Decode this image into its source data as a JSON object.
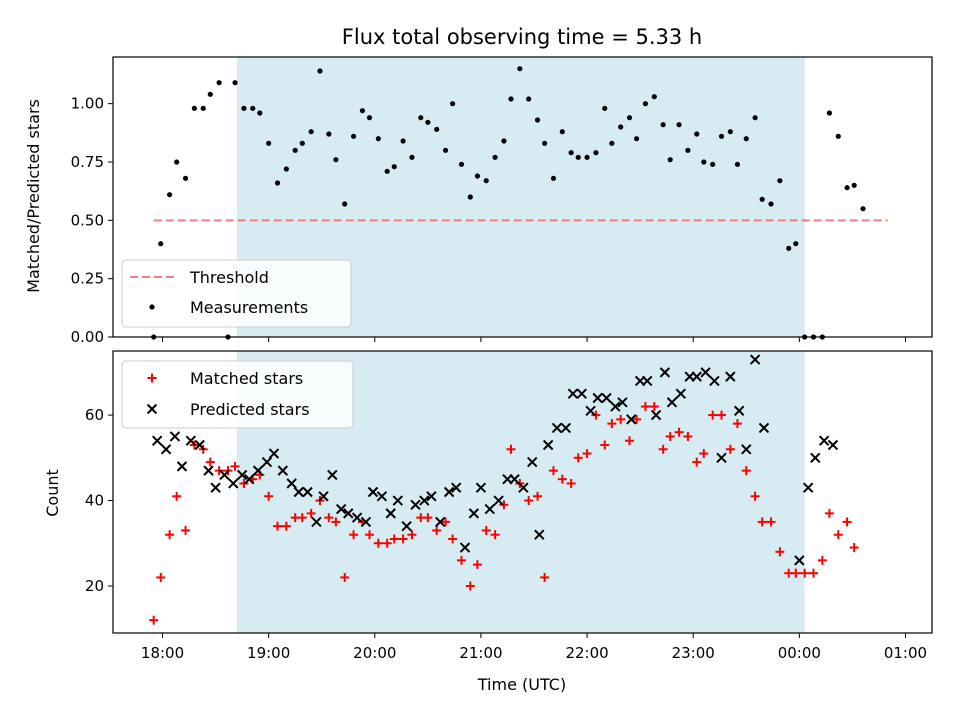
{
  "title": "Flux total observing time = 5.33 h",
  "xlabel": "Time (UTC)",
  "chart_data": [
    {
      "type": "scatter",
      "panel": "top",
      "ylabel": "Matched/Predicted stars",
      "ylim": [
        0,
        1.2
      ],
      "yticks": [
        "0.00",
        "0.25",
        "0.50",
        "0.75",
        "1.00"
      ],
      "xlim": [
        "17:32",
        "01:15"
      ],
      "xticks": [
        "18:00",
        "19:00",
        "20:00",
        "21:00",
        "22:00",
        "23:00",
        "00:00",
        "01:00"
      ],
      "shaded_interval": [
        "18:42",
        "00:03"
      ],
      "threshold": {
        "name": "Threshold",
        "value": 0.5,
        "x": [
          "17:55",
          "00:50"
        ],
        "color": "#f08080"
      },
      "series": [
        {
          "name": "Measurements",
          "color": "#000000",
          "points": [
            [
              "17:55",
              0.0
            ],
            [
              "17:59",
              0.4
            ],
            [
              "18:04",
              0.61
            ],
            [
              "18:08",
              0.75
            ],
            [
              "18:13",
              0.68
            ],
            [
              "18:18",
              0.98
            ],
            [
              "18:23",
              0.98
            ],
            [
              "18:27",
              1.04
            ],
            [
              "18:32",
              1.09
            ],
            [
              "18:37",
              0.0
            ],
            [
              "18:41",
              1.09
            ],
            [
              "18:46",
              0.98
            ],
            [
              "18:51",
              0.98
            ],
            [
              "18:55",
              0.96
            ],
            [
              "19:00",
              0.83
            ],
            [
              "19:05",
              0.66
            ],
            [
              "19:10",
              0.72
            ],
            [
              "19:15",
              0.8
            ],
            [
              "19:19",
              0.83
            ],
            [
              "19:24",
              0.88
            ],
            [
              "19:29",
              1.14
            ],
            [
              "19:34",
              0.87
            ],
            [
              "19:38",
              0.76
            ],
            [
              "19:43",
              0.57
            ],
            [
              "19:48",
              0.86
            ],
            [
              "19:53",
              0.97
            ],
            [
              "19:57",
              0.94
            ],
            [
              "20:02",
              0.85
            ],
            [
              "20:07",
              0.71
            ],
            [
              "20:11",
              0.73
            ],
            [
              "20:16",
              0.84
            ],
            [
              "20:21",
              0.77
            ],
            [
              "20:26",
              0.94
            ],
            [
              "20:30",
              0.92
            ],
            [
              "20:35",
              0.89
            ],
            [
              "20:40",
              0.8
            ],
            [
              "20:44",
              1.0
            ],
            [
              "20:49",
              0.74
            ],
            [
              "20:54",
              0.6
            ],
            [
              "20:58",
              0.69
            ],
            [
              "21:03",
              0.67
            ],
            [
              "21:08",
              0.77
            ],
            [
              "21:13",
              0.84
            ],
            [
              "21:17",
              1.02
            ],
            [
              "21:22",
              1.15
            ],
            [
              "21:27",
              1.02
            ],
            [
              "21:32",
              0.93
            ],
            [
              "21:36",
              0.83
            ],
            [
              "21:41",
              0.68
            ],
            [
              "21:46",
              0.88
            ],
            [
              "21:51",
              0.79
            ],
            [
              "21:55",
              0.77
            ],
            [
              "22:00",
              0.77
            ],
            [
              "22:05",
              0.79
            ],
            [
              "22:10",
              0.98
            ],
            [
              "22:14",
              0.83
            ],
            [
              "22:19",
              0.9
            ],
            [
              "22:24",
              0.94
            ],
            [
              "22:28",
              0.85
            ],
            [
              "22:33",
              1.0
            ],
            [
              "22:38",
              1.03
            ],
            [
              "22:43",
              0.91
            ],
            [
              "22:47",
              0.76
            ],
            [
              "22:52",
              0.91
            ],
            [
              "22:57",
              0.8
            ],
            [
              "23:02",
              0.87
            ],
            [
              "23:06",
              0.75
            ],
            [
              "23:11",
              0.74
            ],
            [
              "23:16",
              0.86
            ],
            [
              "23:21",
              0.88
            ],
            [
              "23:25",
              0.74
            ],
            [
              "23:30",
              0.85
            ],
            [
              "23:35",
              0.94
            ],
            [
              "23:39",
              0.59
            ],
            [
              "23:44",
              0.57
            ],
            [
              "23:49",
              0.67
            ],
            [
              "23:54",
              0.38
            ],
            [
              "23:58",
              0.4
            ],
            [
              "00:03",
              0.0
            ],
            [
              "00:08",
              0.0
            ],
            [
              "00:13",
              0.0
            ],
            [
              "00:17",
              0.96
            ],
            [
              "00:22",
              0.86
            ],
            [
              "00:27",
              0.64
            ],
            [
              "00:31",
              0.65
            ],
            [
              "00:36",
              0.55
            ]
          ]
        }
      ],
      "legend": {
        "placement": "lower-left",
        "entries": [
          "Threshold",
          "Measurements"
        ]
      }
    },
    {
      "type": "scatter",
      "panel": "bottom",
      "ylabel": "Count",
      "ylim": [
        9,
        75
      ],
      "yticks": [
        "20",
        "40",
        "60"
      ],
      "xlim": [
        "17:32",
        "01:15"
      ],
      "xticks": [
        "18:00",
        "19:00",
        "20:00",
        "21:00",
        "22:00",
        "23:00",
        "00:00",
        "01:00"
      ],
      "shaded_interval": [
        "18:42",
        "00:03"
      ],
      "series": [
        {
          "name": "Matched stars",
          "marker": "+",
          "color": "#ff0000",
          "points": [
            [
              "17:55",
              12
            ],
            [
              "17:59",
              22
            ],
            [
              "18:04",
              32
            ],
            [
              "18:08",
              41
            ],
            [
              "18:13",
              33
            ],
            [
              "18:18",
              53
            ],
            [
              "18:23",
              52
            ],
            [
              "18:27",
              49
            ],
            [
              "18:32",
              47
            ],
            [
              "18:37",
              47
            ],
            [
              "18:41",
              48
            ],
            [
              "18:46",
              44
            ],
            [
              "18:51",
              45
            ],
            [
              "18:55",
              46
            ],
            [
              "19:00",
              41
            ],
            [
              "19:05",
              34
            ],
            [
              "19:10",
              34
            ],
            [
              "19:15",
              36
            ],
            [
              "19:19",
              36
            ],
            [
              "19:24",
              37
            ],
            [
              "19:29",
              40
            ],
            [
              "19:34",
              36
            ],
            [
              "19:38",
              35
            ],
            [
              "19:43",
              22
            ],
            [
              "19:48",
              32
            ],
            [
              "19:53",
              35
            ],
            [
              "19:57",
              32
            ],
            [
              "20:02",
              30
            ],
            [
              "20:07",
              30
            ],
            [
              "20:11",
              31
            ],
            [
              "20:16",
              31
            ],
            [
              "20:21",
              32
            ],
            [
              "20:26",
              36
            ],
            [
              "20:30",
              36
            ],
            [
              "20:35",
              33
            ],
            [
              "20:40",
              35
            ],
            [
              "20:44",
              31
            ],
            [
              "20:49",
              26
            ],
            [
              "20:54",
              20
            ],
            [
              "20:58",
              25
            ],
            [
              "21:03",
              33
            ],
            [
              "21:08",
              32
            ],
            [
              "21:13",
              39
            ],
            [
              "21:17",
              52
            ],
            [
              "21:22",
              44
            ],
            [
              "21:27",
              40
            ],
            [
              "21:32",
              41
            ],
            [
              "21:36",
              22
            ],
            [
              "21:41",
              47
            ],
            [
              "21:46",
              45
            ],
            [
              "21:51",
              44
            ],
            [
              "21:55",
              50
            ],
            [
              "22:00",
              51
            ],
            [
              "22:05",
              60
            ],
            [
              "22:10",
              53
            ],
            [
              "22:14",
              58
            ],
            [
              "22:19",
              59
            ],
            [
              "22:24",
              54
            ],
            [
              "22:28",
              59
            ],
            [
              "22:33",
              62
            ],
            [
              "22:38",
              62
            ],
            [
              "22:43",
              52
            ],
            [
              "22:47",
              55
            ],
            [
              "22:52",
              56
            ],
            [
              "22:57",
              55
            ],
            [
              "23:02",
              49
            ],
            [
              "23:06",
              51
            ],
            [
              "23:11",
              60
            ],
            [
              "23:16",
              60
            ],
            [
              "23:21",
              52
            ],
            [
              "23:25",
              58
            ],
            [
              "23:30",
              47
            ],
            [
              "23:35",
              41
            ],
            [
              "23:39",
              35
            ],
            [
              "23:44",
              35
            ],
            [
              "23:49",
              28
            ],
            [
              "23:54",
              23
            ],
            [
              "23:58",
              23
            ],
            [
              "00:03",
              23
            ],
            [
              "00:08",
              23
            ],
            [
              "00:13",
              26
            ],
            [
              "00:17",
              37
            ],
            [
              "00:22",
              32
            ],
            [
              "00:27",
              35
            ],
            [
              "00:31",
              29
            ]
          ]
        },
        {
          "name": "Predicted stars",
          "marker": "x",
          "color": "#000000",
          "points": [
            [
              "17:57",
              54
            ],
            [
              "18:02",
              52
            ],
            [
              "18:07",
              55
            ],
            [
              "18:11",
              48
            ],
            [
              "18:16",
              54
            ],
            [
              "18:21",
              53
            ],
            [
              "18:26",
              47
            ],
            [
              "18:30",
              43
            ],
            [
              "18:35",
              46
            ],
            [
              "18:40",
              44
            ],
            [
              "18:45",
              46
            ],
            [
              "18:49",
              45
            ],
            [
              "18:54",
              47
            ],
            [
              "18:59",
              49
            ],
            [
              "19:03",
              51
            ],
            [
              "19:08",
              47
            ],
            [
              "19:13",
              44
            ],
            [
              "19:17",
              42
            ],
            [
              "19:22",
              42
            ],
            [
              "19:27",
              35
            ],
            [
              "19:31",
              41
            ],
            [
              "19:36",
              46
            ],
            [
              "19:41",
              38
            ],
            [
              "19:45",
              37
            ],
            [
              "19:50",
              36
            ],
            [
              "19:55",
              35
            ],
            [
              "19:59",
              42
            ],
            [
              "20:04",
              41
            ],
            [
              "20:09",
              37
            ],
            [
              "20:13",
              40
            ],
            [
              "20:18",
              34
            ],
            [
              "20:23",
              39
            ],
            [
              "20:28",
              40
            ],
            [
              "20:32",
              41
            ],
            [
              "20:37",
              35
            ],
            [
              "20:42",
              42
            ],
            [
              "20:46",
              43
            ],
            [
              "20:51",
              29
            ],
            [
              "20:56",
              37
            ],
            [
              "21:00",
              43
            ],
            [
              "21:05",
              38
            ],
            [
              "21:10",
              40
            ],
            [
              "21:15",
              45
            ],
            [
              "21:19",
              45
            ],
            [
              "21:24",
              43
            ],
            [
              "21:29",
              49
            ],
            [
              "21:33",
              32
            ],
            [
              "21:38",
              53
            ],
            [
              "21:43",
              57
            ],
            [
              "21:48",
              57
            ],
            [
              "21:52",
              65
            ],
            [
              "21:57",
              65
            ],
            [
              "22:02",
              61
            ],
            [
              "22:06",
              64
            ],
            [
              "22:11",
              64
            ],
            [
              "22:16",
              62
            ],
            [
              "22:20",
              63
            ],
            [
              "22:25",
              59
            ],
            [
              "22:30",
              68
            ],
            [
              "22:34",
              68
            ],
            [
              "22:39",
              60
            ],
            [
              "22:44",
              70
            ],
            [
              "22:48",
              63
            ],
            [
              "22:53",
              65
            ],
            [
              "22:58",
              69
            ],
            [
              "23:02",
              69
            ],
            [
              "23:07",
              70
            ],
            [
              "23:12",
              68
            ],
            [
              "23:16",
              50
            ],
            [
              "23:21",
              69
            ],
            [
              "23:26",
              61
            ],
            [
              "23:30",
              52
            ],
            [
              "23:35",
              73
            ],
            [
              "23:40",
              57
            ],
            [
              "00:00",
              26
            ],
            [
              "00:05",
              43
            ],
            [
              "00:09",
              50
            ],
            [
              "00:14",
              54
            ],
            [
              "00:19",
              53
            ]
          ]
        }
      ],
      "legend": {
        "placement": "upper-left",
        "entries": [
          "Matched stars",
          "Predicted stars"
        ]
      }
    }
  ]
}
